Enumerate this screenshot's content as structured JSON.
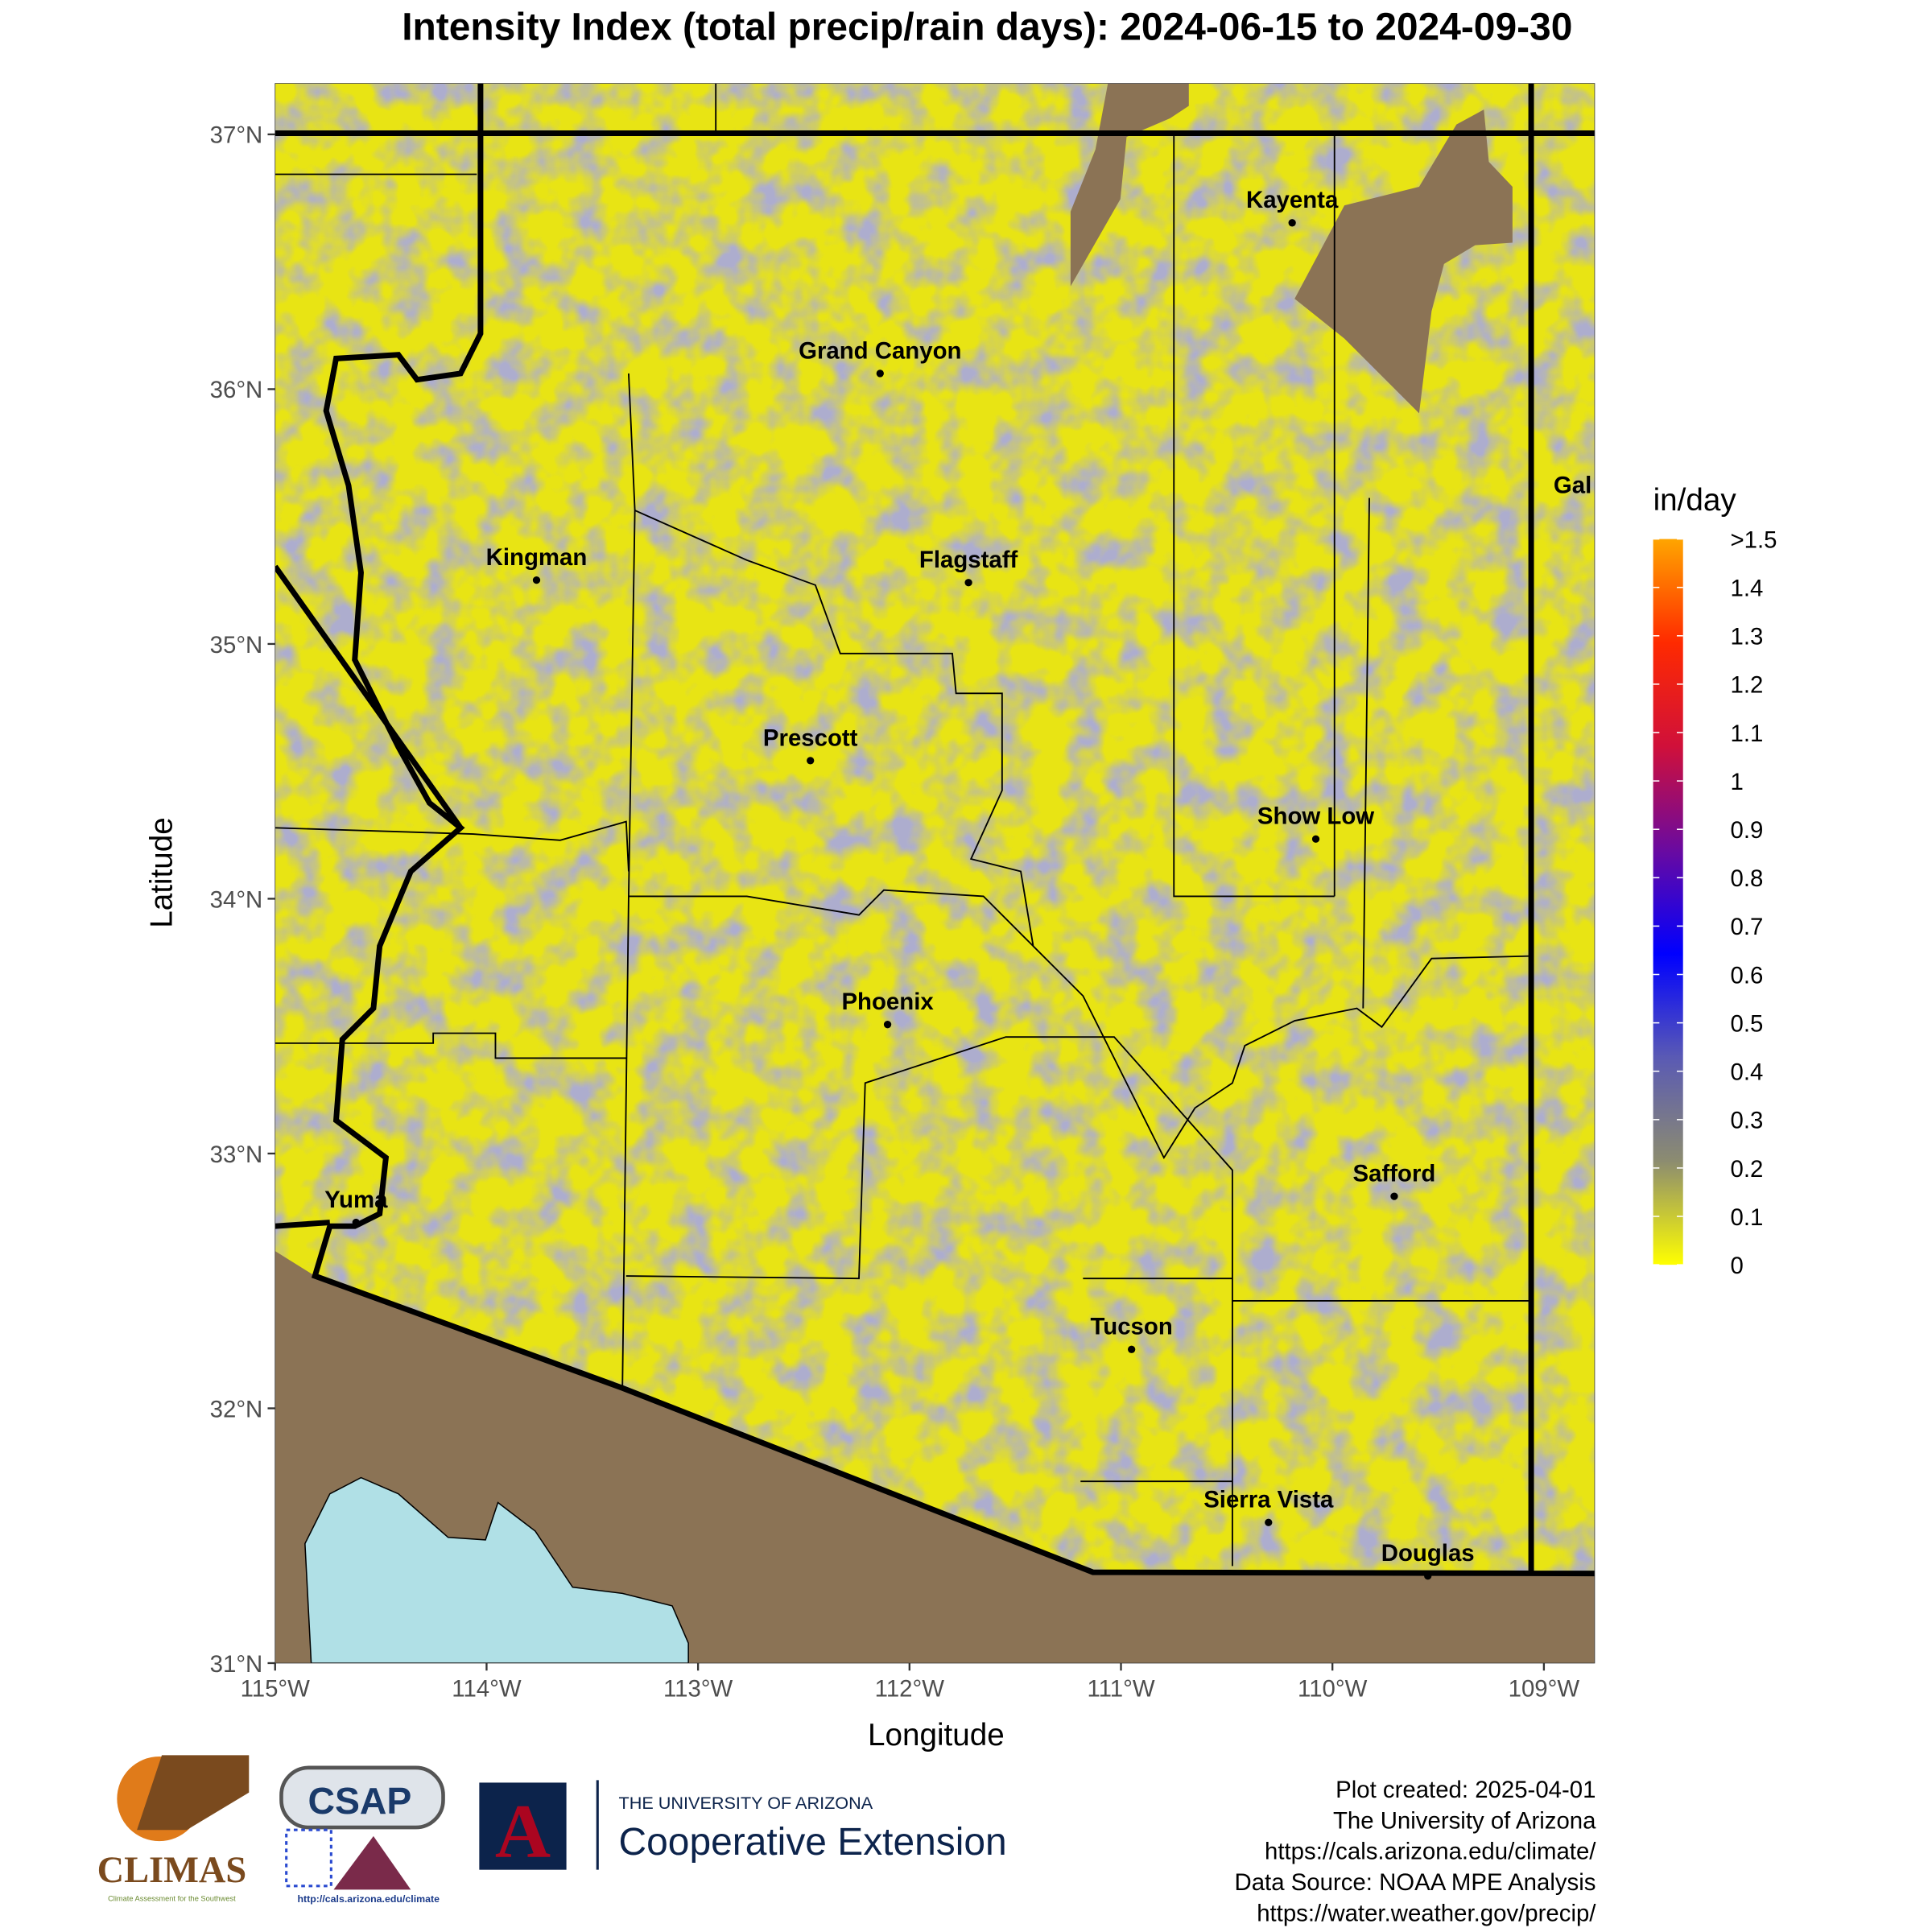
{
  "chart_data": {
    "type": "map",
    "title": "Intensity Index (total precip/rain days): 2024-06-15 to 2024-09-30",
    "x_label": "Longitude",
    "y_label": "Latitude",
    "xlim": [
      -115,
      -108.76
    ],
    "ylim": [
      31,
      37.2
    ],
    "xticks": [
      {
        "value": -115,
        "label": "115°W"
      },
      {
        "value": -114,
        "label": "114°W"
      },
      {
        "value": -113,
        "label": "113°W"
      },
      {
        "value": -112,
        "label": "112°W"
      },
      {
        "value": -111,
        "label": "111°W"
      },
      {
        "value": -110,
        "label": "110°W"
      },
      {
        "value": -109,
        "label": "109°W"
      }
    ],
    "yticks": [
      {
        "value": 31,
        "label": "31°N"
      },
      {
        "value": 32,
        "label": "32°N"
      },
      {
        "value": 33,
        "label": "33°N"
      },
      {
        "value": 34,
        "label": "34°N"
      },
      {
        "value": 35,
        "label": "35°N"
      },
      {
        "value": 36,
        "label": "36°N"
      },
      {
        "value": 37,
        "label": "37°N"
      }
    ],
    "legend_title": "in/day",
    "legend_lim": [
      0,
      1.5
    ],
    "legend_ticks": [
      0,
      {
        "value": 0.1,
        "label": "0.1"
      },
      {
        "value": 0.2,
        "label": "0.2"
      },
      {
        "value": 0.3,
        "label": "0.3"
      },
      {
        "value": 0.4,
        "label": "0.4"
      },
      {
        "value": 0.5,
        "label": "0.5"
      },
      {
        "value": 0.6,
        "label": "0.6"
      },
      {
        "value": 0.7,
        "label": "0.7"
      },
      {
        "value": 0.8,
        "label": "0.8"
      },
      {
        "value": 0.9,
        "label": "0.9"
      },
      1,
      {
        "value": 1.1,
        "label": "1.1"
      },
      {
        "value": 1.2,
        "label": "1.2"
      },
      {
        "value": 1.3,
        "label": "1.3"
      },
      {
        "value": 1.4,
        "label": "1.4"
      },
      {
        "value": 1.5,
        "label": ">1.5"
      }
    ],
    "legend_colors": [
      "#ffff00",
      "#8c8c70",
      "#5a5ab4",
      "#0000ff",
      "#6a0aa0",
      "#d0103a",
      "#ff2a00",
      "#ffa500"
    ],
    "cities": [
      "Kayenta",
      "Grand Canyon",
      "Flagstaff",
      "Kingman",
      "Prescott",
      "Show Low",
      "Phoenix",
      "Safford",
      "Yuma",
      "Tucson",
      "Sierra Vista",
      "Douglas",
      "Gal"
    ]
  },
  "footer": {
    "lines": [
      "Plot created: 2025-04-01",
      "The University of Arizona",
      "https://cals.arizona.edu/climate/",
      "Data Source: NOAA MPE Analysis",
      "https://water.weather.gov/precip/"
    ]
  },
  "logos": {
    "climas": "CLIMAS",
    "climas_sub": "Climate Assessment for the Southwest",
    "csap": "CSAP",
    "csap_url": "http://cals.arizona.edu/climate",
    "ua": "THE UNIVERSITY OF ARIZONA",
    "extension": "Cooperative Extension"
  }
}
